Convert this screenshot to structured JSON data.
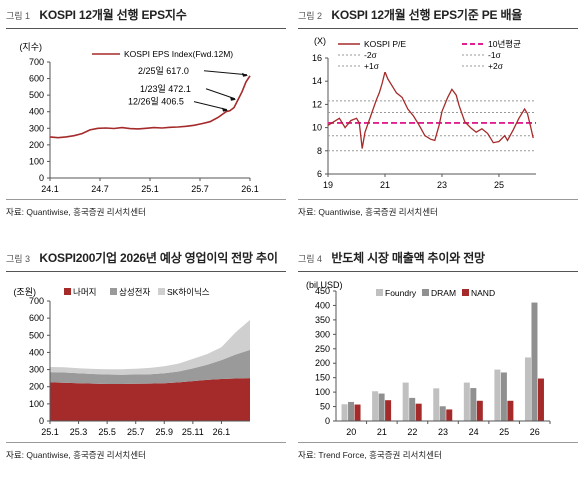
{
  "colors": {
    "eps_line": "#a52a2a",
    "pe_line": "#a52a2a",
    "avg_line": "#e0208f",
    "sigma_line": "#999999",
    "rest": "#a52a2a",
    "samsung": "#9a9a9a",
    "skhynix": "#cfcfcf",
    "foundry": "#c0c0c0",
    "dram": "#909090",
    "nand": "#a52a2a"
  },
  "panels": [
    {
      "fig": "그림 1",
      "title": "KOSPI 12개월 선행 EPS지수",
      "source": "자료: Quantiwise, 흥국증권 리서치센터"
    },
    {
      "fig": "그림 2",
      "title": "KOSPI 12개월 선행 EPS기준 PE 배율",
      "source": "자료: Quantiwise, 흥국증권 리서치센터"
    },
    {
      "fig": "그림 3",
      "title": "KOSPI200기업 2026년 예상 영업이익 전망 추이",
      "source": "자료: Quantiwise, 흥국증권 리서치센터"
    },
    {
      "fig": "그림 4",
      "title": "반도체 시장 매출액 추이와 전망",
      "source": "자료: Trend Force, 흥국증권 리서치센터"
    }
  ],
  "chart_data": [
    {
      "type": "line",
      "ylabel": "(지수)",
      "ylim": [
        0,
        700
      ],
      "yticks": [
        "0",
        "100",
        "200",
        "300",
        "400",
        "500",
        "600",
        "700"
      ],
      "xticks": [
        "24.1",
        "24.7",
        "25.1",
        "25.7",
        "26.1"
      ],
      "xrange": [
        0,
        25
      ],
      "series": [
        {
          "name": "KOSPI EPS Index(Fwd.12M)",
          "x": [
            0,
            1,
            2,
            3,
            4,
            5,
            6,
            7,
            8,
            9,
            10,
            11,
            12,
            13,
            14,
            15,
            16,
            17,
            18,
            19,
            20,
            21,
            22,
            22.5,
            23,
            23.5,
            24,
            24.5,
            25
          ],
          "values": [
            248,
            243,
            248,
            255,
            268,
            290,
            300,
            302,
            299,
            304,
            298,
            296,
            300,
            304,
            302,
            306,
            308,
            312,
            318,
            328,
            340,
            365,
            400,
            406.5,
            425,
            472.1,
            520,
            580,
            617
          ]
        }
      ],
      "annotations": [
        {
          "text": "2/25일 617.0",
          "x": 25,
          "y": 617
        },
        {
          "text": "1/23일 472.1",
          "x": 23.5,
          "y": 472.1
        },
        {
          "text": "12/26일 406.5",
          "x": 22.5,
          "y": 406.5
        }
      ]
    },
    {
      "type": "line",
      "ylabel": "(X)",
      "ylim": [
        6,
        16
      ],
      "yticks": [
        "6",
        "8",
        "10",
        "12",
        "14",
        "16"
      ],
      "xticks": [
        "19",
        "21",
        "23",
        "25"
      ],
      "xrange": [
        2019,
        2026.3
      ],
      "legend": [
        "KOSPI P/E",
        "10년평균",
        "-2σ",
        "-1σ",
        "+1σ",
        "+2σ"
      ],
      "series": [
        {
          "name": "KOSPI P/E",
          "x": [
            2019.0,
            2019.2,
            2019.4,
            2019.6,
            2019.8,
            2020.0,
            2020.1,
            2020.2,
            2020.3,
            2020.5,
            2020.7,
            2020.8,
            2020.9,
            2021.0,
            2021.1,
            2021.25,
            2021.4,
            2021.6,
            2021.8,
            2022.0,
            2022.2,
            2022.4,
            2022.6,
            2022.75,
            2022.9,
            2023.0,
            2023.2,
            2023.35,
            2023.5,
            2023.6,
            2023.8,
            2024.0,
            2024.2,
            2024.4,
            2024.6,
            2024.8,
            2025.0,
            2025.2,
            2025.3,
            2025.5,
            2025.7,
            2025.9,
            2026.0,
            2026.1,
            2026.2
          ],
          "values": [
            10.2,
            10.5,
            10.8,
            10.0,
            10.6,
            10.8,
            10.4,
            8.2,
            9.6,
            11.0,
            12.4,
            13.0,
            13.8,
            14.8,
            14.2,
            13.6,
            13.0,
            12.6,
            11.6,
            11.0,
            10.2,
            9.3,
            9.0,
            8.9,
            10.2,
            11.4,
            12.6,
            13.3,
            12.8,
            11.9,
            10.5,
            10.0,
            9.6,
            9.9,
            9.5,
            8.7,
            8.8,
            9.3,
            8.9,
            9.8,
            10.8,
            11.6,
            11.2,
            10.2,
            9.1
          ]
        },
        {
          "name": "10년평균",
          "values": [
            10.4
          ]
        },
        {
          "name": "+1σ",
          "values": [
            11.3
          ]
        },
        {
          "name": "+2σ",
          "values": [
            12.3
          ]
        },
        {
          "name": "-1σ",
          "values": [
            9.3
          ]
        },
        {
          "name": "-2σ",
          "values": [
            8.0
          ]
        }
      ]
    },
    {
      "type": "area",
      "ylabel": "(조원)",
      "ylim": [
        0,
        700
      ],
      "yticks": [
        "0",
        "100",
        "200",
        "300",
        "400",
        "500",
        "600",
        "700"
      ],
      "xticks": [
        "25.1",
        "25.3",
        "25.5",
        "25.7",
        "25.9",
        "25.11",
        "26.1"
      ],
      "xrange": [
        0,
        14
      ],
      "series": [
        {
          "name": "나머지",
          "x": [
            0,
            1,
            2,
            3,
            4,
            5,
            6,
            7,
            8,
            9,
            10,
            11,
            12,
            13,
            14
          ],
          "values": [
            225,
            223,
            220,
            218,
            216,
            216,
            217,
            218,
            220,
            225,
            233,
            240,
            245,
            248,
            250
          ]
        },
        {
          "name": "삼성전자",
          "x": [
            0,
            1,
            2,
            3,
            4,
            5,
            6,
            7,
            8,
            9,
            10,
            11,
            12,
            13,
            14
          ],
          "values": [
            60,
            60,
            58,
            56,
            55,
            54,
            54,
            55,
            58,
            64,
            74,
            88,
            110,
            140,
            165
          ]
        },
        {
          "name": "SK하이닉스",
          "x": [
            0,
            1,
            2,
            3,
            4,
            5,
            6,
            7,
            8,
            9,
            10,
            11,
            12,
            13,
            14
          ],
          "values": [
            30,
            30,
            30,
            30,
            31,
            32,
            34,
            37,
            41,
            46,
            55,
            62,
            75,
            130,
            175
          ]
        }
      ]
    },
    {
      "type": "bar",
      "ylabel": "(bil.USD)",
      "ylim": [
        0,
        450
      ],
      "yticks": [
        "0",
        "50",
        "100",
        "150",
        "200",
        "250",
        "300",
        "350",
        "400",
        "450"
      ],
      "categories": [
        "20",
        "21",
        "22",
        "23",
        "24",
        "25",
        "26"
      ],
      "series": [
        {
          "name": "Foundry",
          "values": [
            58,
            103,
            133,
            113,
            133,
            178,
            220
          ]
        },
        {
          "name": "DRAM",
          "values": [
            66,
            95,
            80,
            51,
            114,
            168,
            410
          ]
        },
        {
          "name": "NAND",
          "values": [
            57,
            72,
            60,
            40,
            70,
            70,
            147
          ]
        }
      ]
    }
  ]
}
